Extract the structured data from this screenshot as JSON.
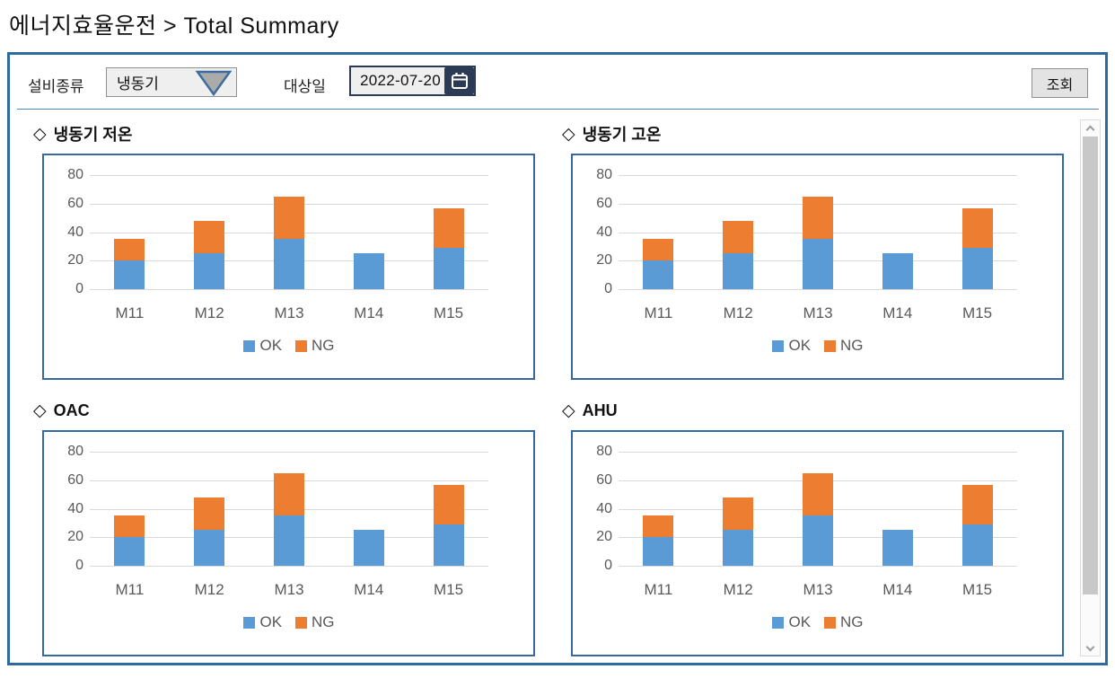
{
  "page": {
    "title": "에너지효율운전 > Total Summary",
    "section_marker": "◇"
  },
  "filter_bar": {
    "equipment_label": "설비종류",
    "equipment_value": "냉동기",
    "date_label": "대상일",
    "date_value": "2022-07-20",
    "search_button": "조회"
  },
  "icons": {
    "dropdown_arrow": "triangle-down-icon",
    "calendar": "calendar-icon",
    "scroll_up": "chevron-up-icon",
    "scroll_down": "chevron-down-icon"
  },
  "colors": {
    "ok": "#5b9bd5",
    "ng": "#ed7d31",
    "grid": "#d9d9d9",
    "axis_text": "#595959",
    "panel_border": "#2f6b9e",
    "chart_border": "#35699f",
    "icon_navy": "#2b3a55"
  },
  "chart_data": [
    {
      "type": "bar",
      "stacked": true,
      "title": "냉동기 저온",
      "categories": [
        "M11",
        "M12",
        "M13",
        "M14",
        "M15"
      ],
      "series": [
        {
          "name": "OK",
          "color": "#5b9bd5",
          "values": [
            20,
            25,
            35,
            25,
            29
          ]
        },
        {
          "name": "NG",
          "color": "#ed7d31",
          "values": [
            15,
            23,
            30,
            0,
            28
          ]
        }
      ],
      "ylim": [
        0,
        80
      ],
      "yticks": [
        0,
        20,
        40,
        60,
        80
      ],
      "grid": true,
      "legend_position": "bottom"
    },
    {
      "type": "bar",
      "stacked": true,
      "title": "냉동기 고온",
      "categories": [
        "M11",
        "M12",
        "M13",
        "M14",
        "M15"
      ],
      "series": [
        {
          "name": "OK",
          "color": "#5b9bd5",
          "values": [
            20,
            25,
            35,
            25,
            29
          ]
        },
        {
          "name": "NG",
          "color": "#ed7d31",
          "values": [
            15,
            23,
            30,
            0,
            28
          ]
        }
      ],
      "ylim": [
        0,
        80
      ],
      "yticks": [
        0,
        20,
        40,
        60,
        80
      ],
      "grid": true,
      "legend_position": "bottom"
    },
    {
      "type": "bar",
      "stacked": true,
      "title": "OAC",
      "categories": [
        "M11",
        "M12",
        "M13",
        "M14",
        "M15"
      ],
      "series": [
        {
          "name": "OK",
          "color": "#5b9bd5",
          "values": [
            20,
            25,
            35,
            25,
            29
          ]
        },
        {
          "name": "NG",
          "color": "#ed7d31",
          "values": [
            15,
            23,
            30,
            0,
            28
          ]
        }
      ],
      "ylim": [
        0,
        80
      ],
      "yticks": [
        0,
        20,
        40,
        60,
        80
      ],
      "grid": true,
      "legend_position": "bottom"
    },
    {
      "type": "bar",
      "stacked": true,
      "title": "AHU",
      "categories": [
        "M11",
        "M12",
        "M13",
        "M14",
        "M15"
      ],
      "series": [
        {
          "name": "OK",
          "color": "#5b9bd5",
          "values": [
            20,
            25,
            35,
            25,
            29
          ]
        },
        {
          "name": "NG",
          "color": "#ed7d31",
          "values": [
            15,
            23,
            30,
            0,
            28
          ]
        }
      ],
      "ylim": [
        0,
        80
      ],
      "yticks": [
        0,
        20,
        40,
        60,
        80
      ],
      "grid": true,
      "legend_position": "bottom"
    }
  ]
}
